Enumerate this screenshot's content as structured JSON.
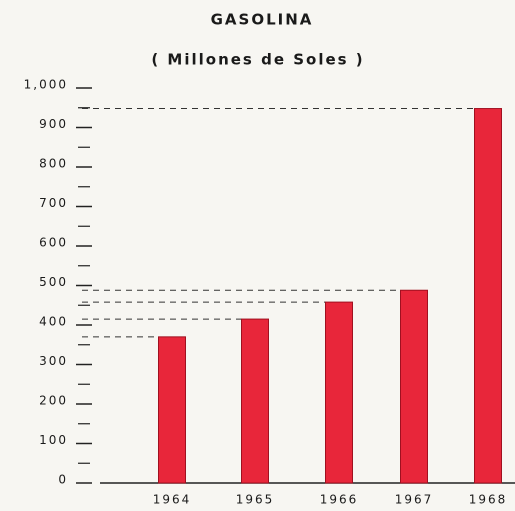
{
  "chart_data": {
    "type": "bar",
    "title": "GASOLINA",
    "subtitle": "( Millones de Soles )",
    "categories": [
      "1964",
      "1965",
      "1966",
      "1967",
      "1968"
    ],
    "values": [
      370,
      415,
      458,
      488,
      948
    ],
    "color": "#e8263a",
    "ylim": [
      0,
      1000
    ],
    "yticks": [
      0,
      100,
      200,
      300,
      400,
      500,
      600,
      700,
      800,
      900,
      {
        "value": 1000,
        "label": "1,000"
      }
    ],
    "minor_yticks": [
      50,
      150,
      250,
      350,
      450,
      550,
      650,
      750,
      850,
      950
    ]
  }
}
